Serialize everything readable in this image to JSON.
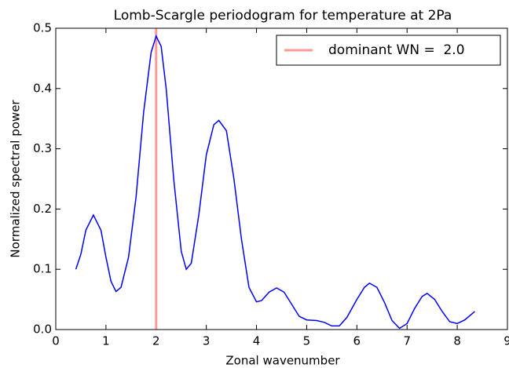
{
  "chart_data": {
    "type": "line",
    "title": "Lomb-Scargle periodogram for temperature at 2Pa",
    "x_label": "Zonal wavenumber",
    "y_label": "Normalized spectral power",
    "xlim": [
      0,
      9
    ],
    "ylim": [
      0,
      0.5
    ],
    "xticks": [
      0,
      1,
      2,
      3,
      4,
      5,
      6,
      7,
      8,
      9
    ],
    "yticks": [
      {
        "value": 0,
        "label": "0.0"
      },
      0.1,
      0.2,
      0.3,
      0.4,
      0.5
    ],
    "series": [
      {
        "color": "#0000ff",
        "x": [
          0.4,
          0.5,
          0.6,
          0.75,
          0.9,
          1.0,
          1.1,
          1.2,
          1.3,
          1.45,
          1.6,
          1.75,
          1.9,
          2.0,
          2.1,
          2.2,
          2.35,
          2.5,
          2.6,
          2.7,
          2.85,
          3.0,
          3.15,
          3.25,
          3.4,
          3.55,
          3.7,
          3.85,
          4.0,
          4.1,
          4.25,
          4.4,
          4.55,
          4.7,
          4.85,
          5.0,
          5.2,
          5.35,
          5.5,
          5.65,
          5.8,
          6.0,
          6.15,
          6.25,
          6.4,
          6.55,
          6.7,
          6.85,
          7.0,
          7.15,
          7.3,
          7.4,
          7.55,
          7.7,
          7.85,
          8.0,
          8.15,
          8.35
        ],
        "values": [
          0.1,
          0.125,
          0.165,
          0.19,
          0.165,
          0.12,
          0.08,
          0.063,
          0.07,
          0.12,
          0.22,
          0.36,
          0.46,
          0.487,
          0.47,
          0.4,
          0.25,
          0.13,
          0.1,
          0.11,
          0.19,
          0.29,
          0.34,
          0.347,
          0.33,
          0.25,
          0.15,
          0.07,
          0.046,
          0.048,
          0.062,
          0.069,
          0.062,
          0.042,
          0.022,
          0.016,
          0.015,
          0.012,
          0.006,
          0.006,
          0.02,
          0.05,
          0.07,
          0.077,
          0.07,
          0.045,
          0.015,
          0.002,
          0.01,
          0.035,
          0.055,
          0.06,
          0.05,
          0.03,
          0.013,
          0.01,
          0.016,
          0.03
        ]
      }
    ],
    "vlines": [
      {
        "name": "dominant WN =  2.0",
        "x": 2.0,
        "color": "#ff9999"
      }
    ],
    "legend": "upper right"
  }
}
